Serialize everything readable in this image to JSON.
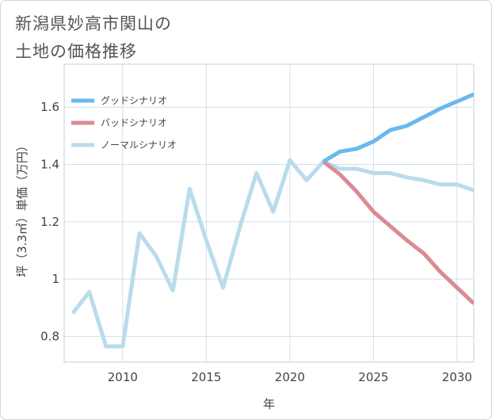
{
  "page": {
    "title": "新潟県妙高市関山の\n土地の価格推移"
  },
  "chart_data": {
    "type": "line",
    "title": "新潟県妙高市関山の\n土地の価格推移",
    "xlabel": "年",
    "ylabel": "坪（3.3㎡）単価（万円）",
    "xlim": [
      2006.5,
      2031
    ],
    "ylim": [
      0.71,
      1.75
    ],
    "xticks": [
      2010,
      2015,
      2020,
      2025,
      2030
    ],
    "yticks": [
      0.8,
      1,
      1.2,
      1.4,
      1.6
    ],
    "ytick_labels": [
      "0.8",
      "1",
      "1.2",
      "1.4",
      "1.6"
    ],
    "grid": true,
    "legend_position": "top-left",
    "series": [
      {
        "name": "グッドシナリオ",
        "color": "#6ab8ee",
        "x": [
          2022,
          2023,
          2024,
          2025,
          2026,
          2027,
          2028,
          2029,
          2030,
          2031
        ],
        "y": [
          1.41,
          1.445,
          1.455,
          1.48,
          1.52,
          1.535,
          1.565,
          1.595,
          1.62,
          1.645
        ]
      },
      {
        "name": "バッドシナリオ",
        "color": "#db8a94",
        "x": [
          2022,
          2023,
          2024,
          2025,
          2026,
          2027,
          2028,
          2029,
          2030,
          2031
        ],
        "y": [
          1.41,
          1.365,
          1.305,
          1.235,
          1.185,
          1.135,
          1.09,
          1.025,
          0.97,
          0.915
        ]
      },
      {
        "name": "ノーマルシナリオ",
        "color": "#b9dceb",
        "x": [
          2007,
          2008,
          2009,
          2010,
          2011,
          2012,
          2013,
          2014,
          2015,
          2016,
          2017,
          2018,
          2019,
          2020,
          2021,
          2022,
          2023,
          2024,
          2025,
          2026,
          2027,
          2028,
          2029,
          2030,
          2031
        ],
        "y": [
          0.88,
          0.955,
          0.765,
          0.765,
          1.16,
          1.08,
          0.96,
          1.315,
          1.135,
          0.97,
          1.18,
          1.37,
          1.235,
          1.415,
          1.345,
          1.41,
          1.385,
          1.385,
          1.37,
          1.37,
          1.355,
          1.345,
          1.33,
          1.33,
          1.31
        ]
      }
    ]
  }
}
